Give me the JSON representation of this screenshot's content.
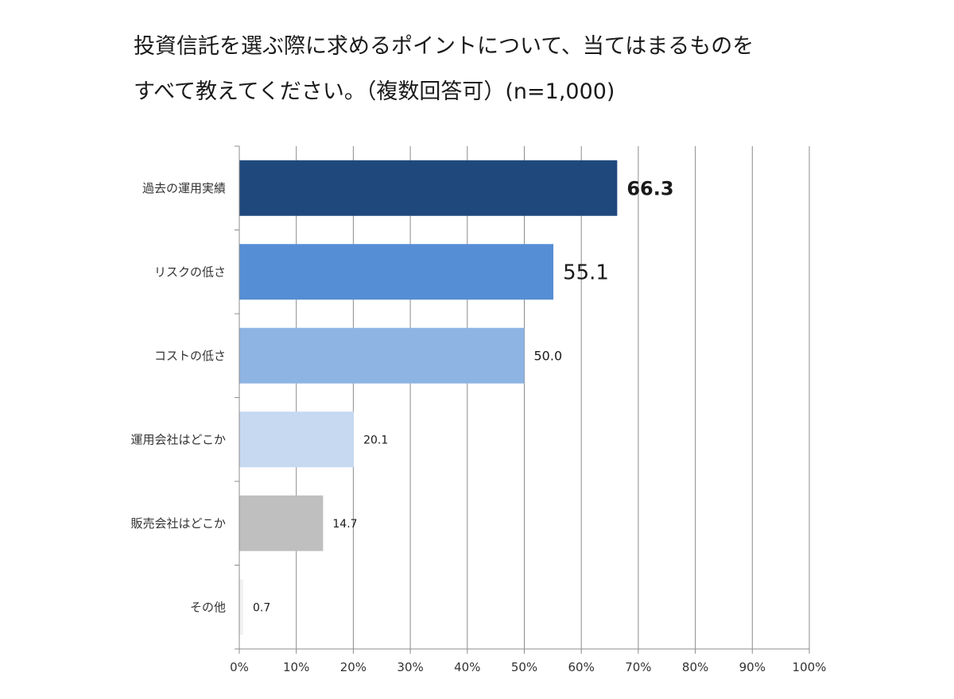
{
  "title": {
    "line1": "投資信託を選ぶ際に求めるポイントについて、当てはまるものを",
    "line2": "すべて教えてください。（複数回答可）(n=1,000)"
  },
  "chart_data": {
    "type": "bar",
    "orientation": "horizontal",
    "categories": [
      "過去の運用実績",
      "リスクの低さ",
      "コストの低さ",
      "運用会社はどこか",
      "販売会社はどこか",
      "その他"
    ],
    "values": [
      66.3,
      55.1,
      50.0,
      20.1,
      14.7,
      0.7
    ],
    "value_labels": [
      "66.3",
      "55.1",
      "50.0",
      "20.1",
      "14.7",
      "0.7"
    ],
    "bar_colors": [
      "#1f497d",
      "#558ed5",
      "#8eb4e3",
      "#c6d9f1",
      "#bfbfbf",
      "#f2f2f2"
    ],
    "label_styles": [
      {
        "size": 24,
        "weight": "bold"
      },
      {
        "size": 26,
        "weight": "normal"
      },
      {
        "size": 16,
        "weight": "normal"
      },
      {
        "size": 14,
        "weight": "normal"
      },
      {
        "size": 14,
        "weight": "normal"
      },
      {
        "size": 14,
        "weight": "normal"
      }
    ],
    "x_ticks": [
      "0%",
      "10%",
      "20%",
      "30%",
      "40%",
      "50%",
      "60%",
      "70%",
      "80%",
      "90%",
      "100%"
    ],
    "xlim": [
      0,
      100
    ],
    "grid": true,
    "legend": "none",
    "xlabel": "",
    "ylabel": ""
  }
}
